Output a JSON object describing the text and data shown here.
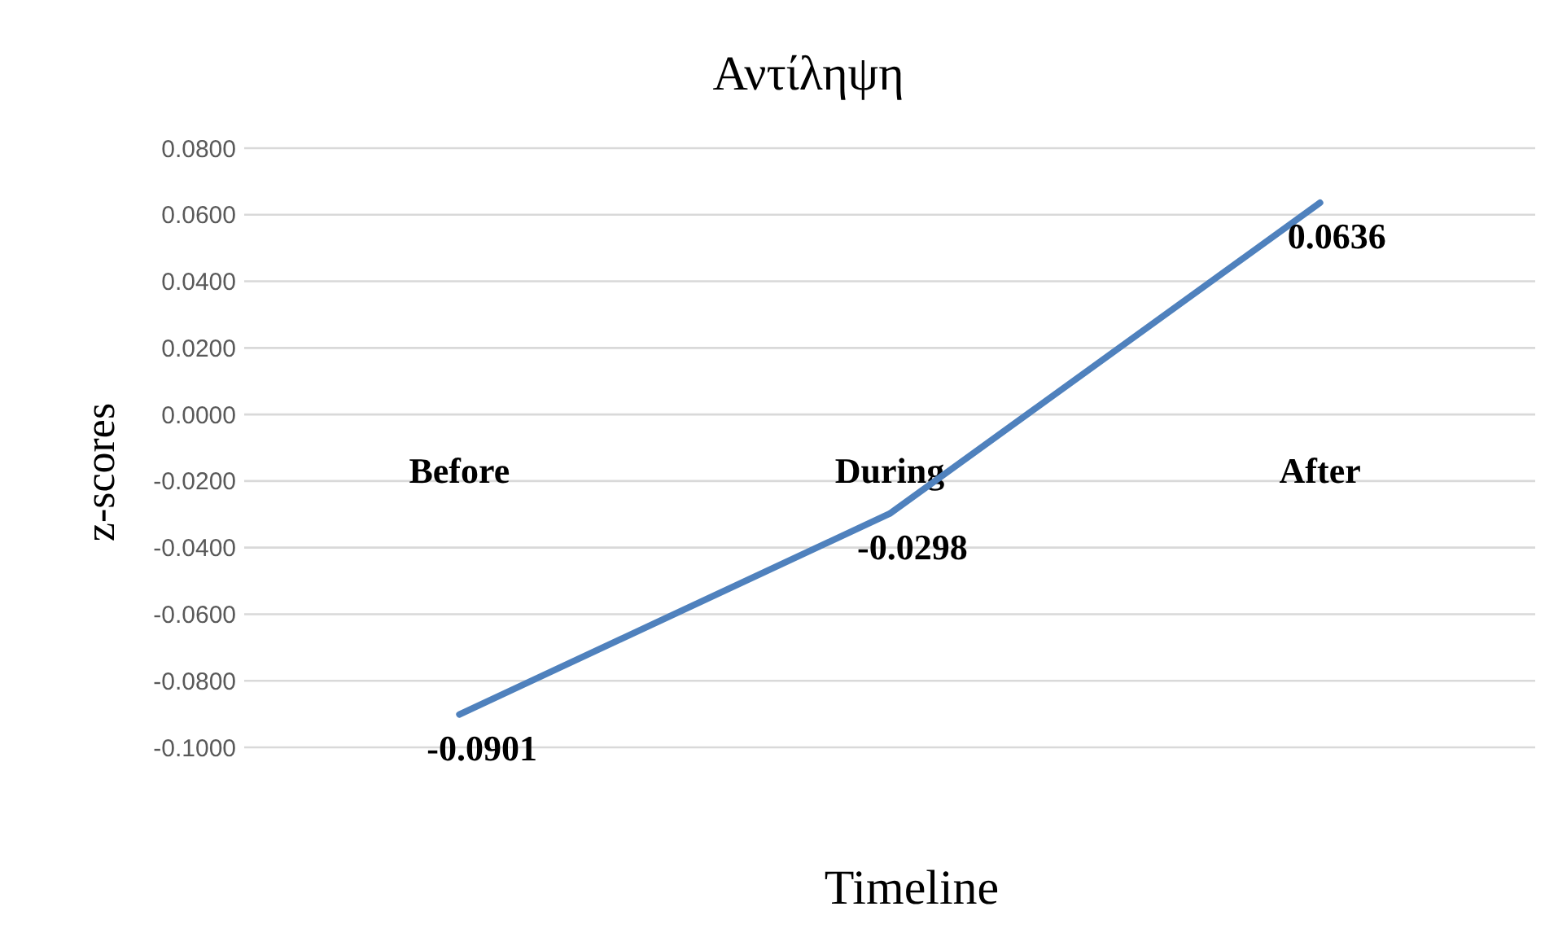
{
  "chart_data": {
    "type": "line",
    "title": "Αντίληψη",
    "xlabel": "Timeline",
    "ylabel": "z-scores",
    "categories": [
      "Before",
      "During",
      "After"
    ],
    "series": [
      {
        "color": "#4f81bd",
        "values": [
          -0.0901,
          -0.0298,
          0.0636
        ]
      }
    ],
    "ylim": [
      -0.1,
      0.08
    ],
    "yticks": [
      {
        "value": -0.1,
        "label": "-0.1000"
      },
      {
        "value": -0.08,
        "label": "-0.0800"
      },
      {
        "value": -0.06,
        "label": "-0.0600"
      },
      {
        "value": -0.04,
        "label": "-0.0400"
      },
      {
        "value": -0.02,
        "label": "-0.0200"
      },
      {
        "value": 0,
        "label": "0.0000"
      },
      {
        "value": 0.02,
        "label": "0.0200"
      },
      {
        "value": 0.04,
        "label": "0.0400"
      },
      {
        "value": 0.06,
        "label": "0.0600"
      },
      {
        "value": 0.08,
        "label": "0.0800"
      }
    ],
    "grid": "y",
    "data_labels": true,
    "marker": "none",
    "line_style": "solid"
  }
}
